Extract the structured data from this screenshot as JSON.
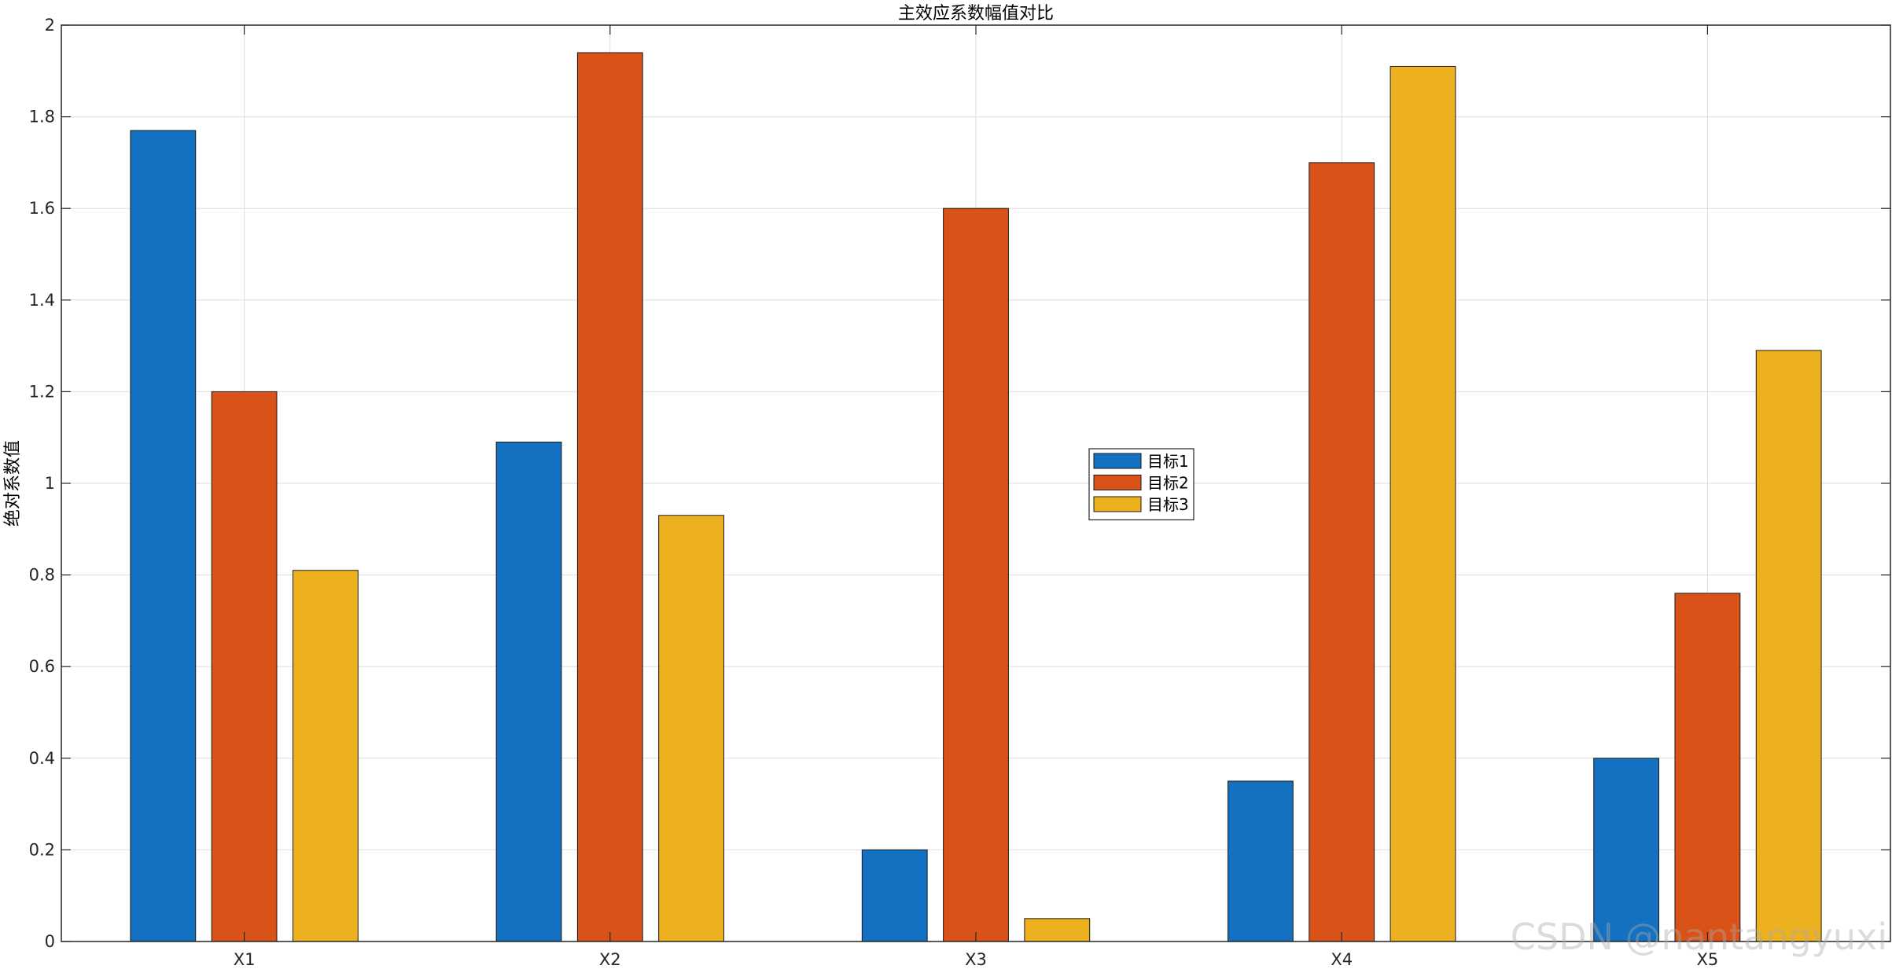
{
  "chart_data": {
    "type": "bar",
    "title": "主效应系数幅值对比",
    "xlabel": "",
    "ylabel": "绝对系数值",
    "categories": [
      "X1",
      "X2",
      "X3",
      "X4",
      "X5"
    ],
    "series": [
      {
        "name": "目标1",
        "values": [
          1.77,
          1.09,
          0.2,
          0.35,
          0.4
        ],
        "color": "#1470C0"
      },
      {
        "name": "目标2",
        "values": [
          1.2,
          1.94,
          1.6,
          1.7,
          0.76
        ],
        "color": "#D95319"
      },
      {
        "name": "目标3",
        "values": [
          0.81,
          0.93,
          0.05,
          1.91,
          1.29
        ],
        "color": "#EDB120"
      }
    ],
    "ylim": [
      0,
      2
    ],
    "yticks": [
      0,
      0.2,
      0.4,
      0.6,
      0.8,
      1,
      1.2,
      1.4,
      1.6,
      1.8,
      2
    ],
    "ytick_labels": [
      "0",
      "0.2",
      "0.4",
      "0.6",
      "0.8",
      "1",
      "1.2",
      "1.4",
      "1.6",
      "1.8",
      "2"
    ],
    "grid": true,
    "legend_position": "center"
  },
  "watermark": "CSDN @nantangyuxi"
}
